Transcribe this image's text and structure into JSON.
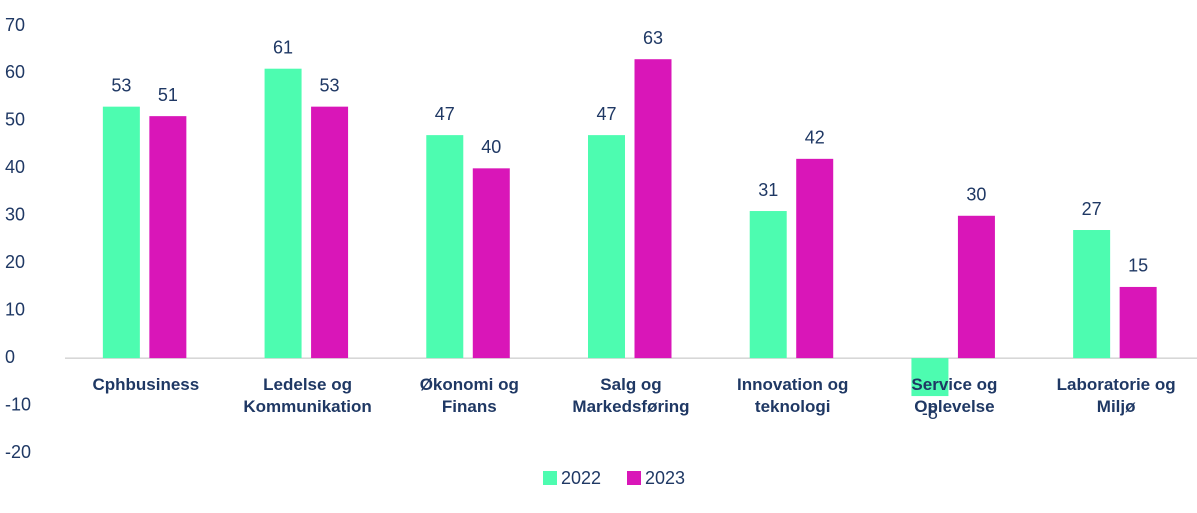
{
  "chart_data": {
    "type": "bar",
    "categories": [
      "Cphbusiness",
      "Ledelse og Kommunikation",
      "Økonomi og Finans",
      "Salg og Markedsføring",
      "Innovation og teknologi",
      "Service og Oplevelse",
      "Laboratorie og Miljø"
    ],
    "series": [
      {
        "name": "2022",
        "color": "#4dfcb0",
        "values": [
          53,
          61,
          47,
          47,
          31,
          -8,
          27
        ]
      },
      {
        "name": "2023",
        "color": "#d916b8",
        "values": [
          51,
          53,
          40,
          63,
          42,
          30,
          15
        ]
      }
    ],
    "ylim": [
      -20,
      70
    ],
    "yticks": [
      -20,
      -10,
      0,
      10,
      20,
      30,
      40,
      50,
      60,
      70
    ],
    "grid": false,
    "legend": "bottom"
  }
}
